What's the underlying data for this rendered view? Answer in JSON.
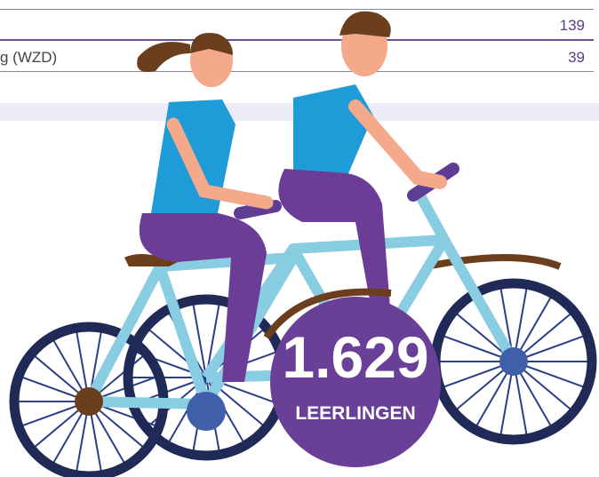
{
  "table": {
    "rows": [
      {
        "label": null,
        "value": "139"
      },
      {
        "label": "g (WZD)",
        "value": "39"
      }
    ]
  },
  "highlight": {
    "number": "1.629",
    "caption": "LEERLINGEN"
  }
}
